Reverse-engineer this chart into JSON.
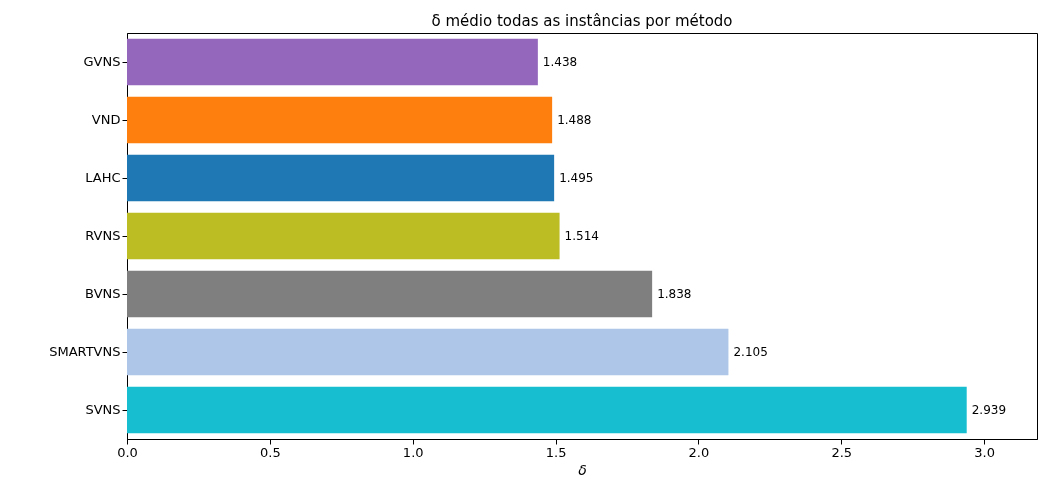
{
  "chart_data": {
    "type": "bar",
    "orientation": "horizontal",
    "title": "δ médio todas as instâncias por método",
    "xlabel": "δ",
    "categories": [
      "GVNS",
      "VND",
      "LAHC",
      "RVNS",
      "BVNS",
      "SMARTVNS",
      "SVNS"
    ],
    "values": [
      1.438,
      1.488,
      1.495,
      1.514,
      1.838,
      2.105,
      2.939
    ],
    "colors": [
      "#9467bd",
      "#ff7f0e",
      "#1f77b4",
      "#bcbd22",
      "#7f7f7f",
      "#aec7e8",
      "#17becf"
    ],
    "xlim": [
      0,
      3.185
    ],
    "xticks": [
      {
        "value": 0,
        "label": "0.0"
      },
      {
        "value": 0.5,
        "label": "0.5"
      },
      {
        "value": 1,
        "label": "1.0"
      },
      {
        "value": 1.5,
        "label": "1.5"
      },
      {
        "value": 2,
        "label": "2.0"
      },
      {
        "value": 2.5,
        "label": "2.5"
      },
      {
        "value": 3,
        "label": "3.0"
      }
    ],
    "data_labels": true,
    "grid": false
  }
}
